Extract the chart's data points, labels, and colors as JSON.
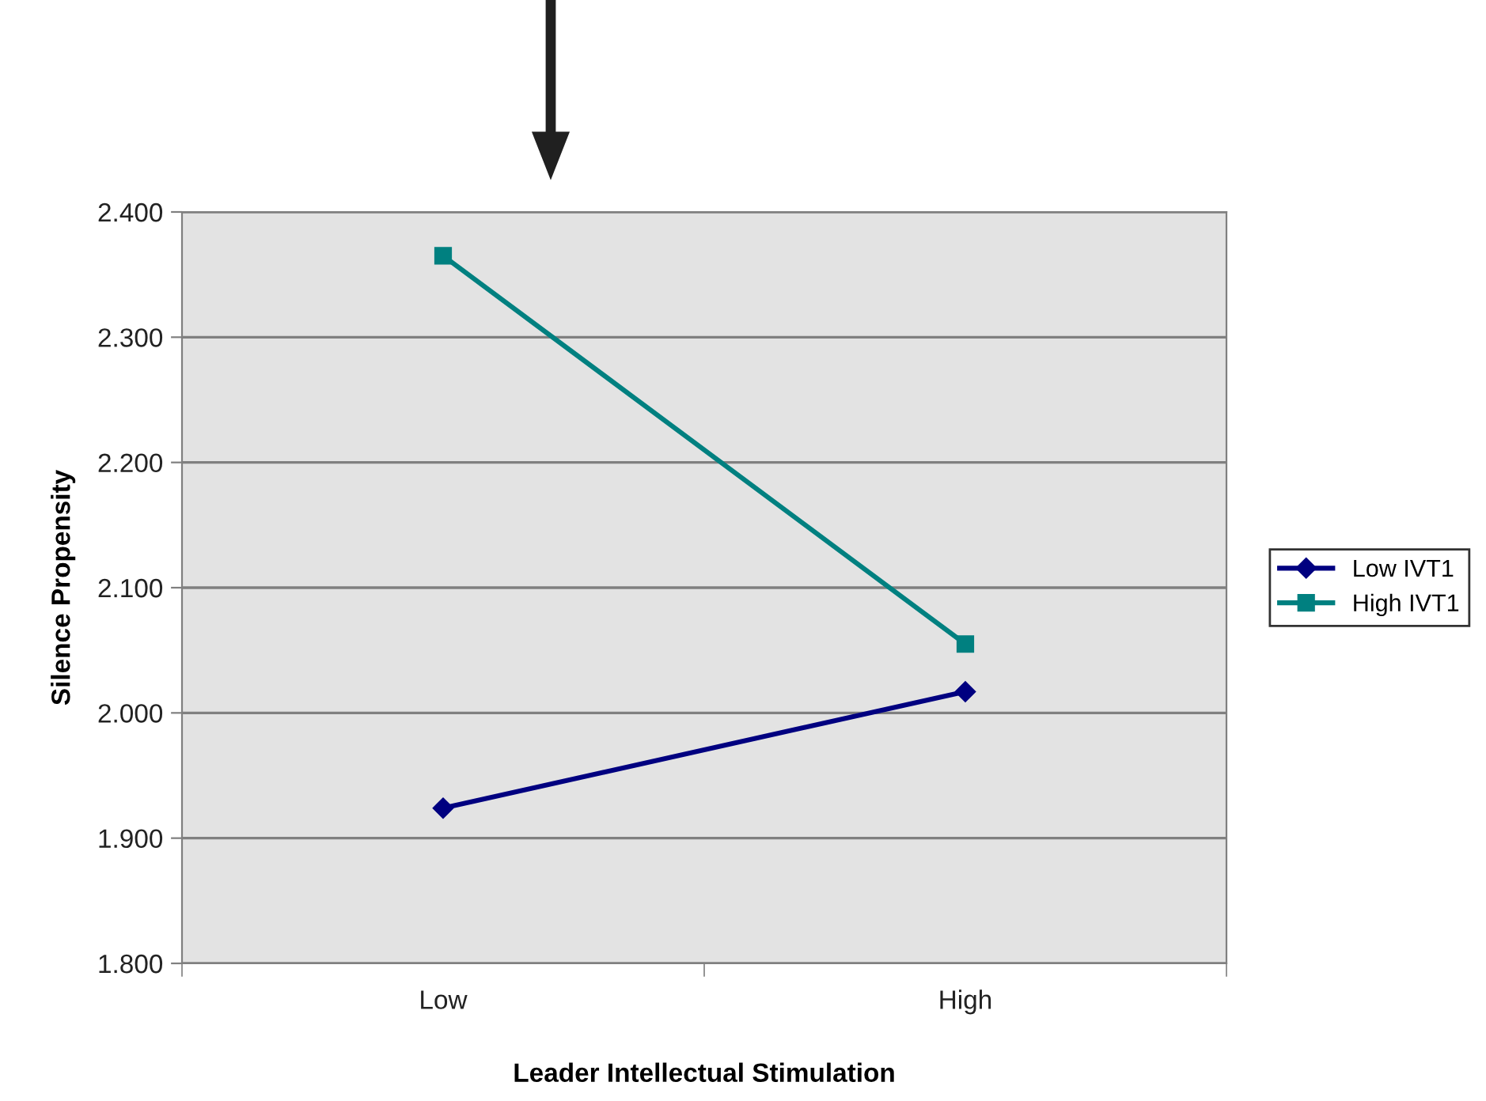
{
  "chart_data": {
    "type": "line",
    "xlabel": "Leader Intellectual Stimulation",
    "ylabel": "Silence Propensity",
    "categories": [
      "Low",
      "High"
    ],
    "series": [
      {
        "name": "Low IVT1",
        "color": "#000080",
        "marker": "diamond",
        "values": [
          1.924,
          2.017
        ]
      },
      {
        "name": "High IVT1",
        "color": "#008080",
        "marker": "square",
        "values": [
          2.365,
          2.055
        ]
      }
    ],
    "ylim": [
      1.8,
      2.4
    ],
    "yticks": [
      {
        "value": 1.8,
        "label": "1.800"
      },
      {
        "value": 1.9,
        "label": "1.900"
      },
      {
        "value": 2.0,
        "label": "2.000"
      },
      {
        "value": 2.1,
        "label": "2.100"
      },
      {
        "value": 2.2,
        "label": "2.200"
      },
      {
        "value": 2.3,
        "label": "2.300"
      },
      {
        "value": 2.4,
        "label": "2.400"
      }
    ],
    "grid": "y",
    "legend": "right",
    "line_style": "solid"
  }
}
